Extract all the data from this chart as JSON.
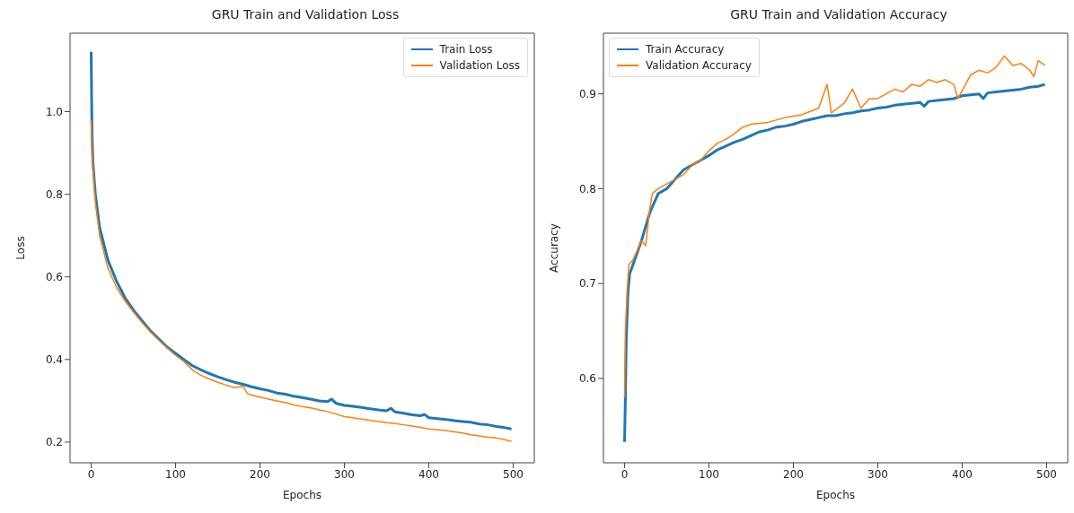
{
  "chart_data": [
    {
      "type": "line",
      "title": "GRU Train and Validation Loss",
      "xlabel": "Epochs",
      "ylabel": "Loss",
      "xlim": [
        -25,
        525
      ],
      "xticks": [
        0,
        100,
        200,
        300,
        400,
        500
      ],
      "ylim": [
        0.15,
        1.19
      ],
      "yticks": [
        0.2,
        0.4,
        0.6,
        0.8,
        {
          "value": 1.0,
          "label": "1.0"
        }
      ],
      "legend": "top right",
      "marker": "none",
      "line_style": "solid",
      "series": [
        {
          "name": "Train Loss",
          "color": "#1f77b4",
          "x": [
            0,
            1,
            2,
            5,
            10,
            20,
            30,
            40,
            50,
            60,
            70,
            80,
            90,
            100,
            110,
            120,
            130,
            140,
            150,
            160,
            170,
            180,
            190,
            200,
            210,
            220,
            230,
            240,
            250,
            260,
            270,
            280,
            285,
            290,
            300,
            310,
            320,
            330,
            340,
            350,
            355,
            360,
            370,
            380,
            390,
            395,
            400,
            410,
            420,
            430,
            440,
            450,
            460,
            470,
            480,
            490,
            498
          ],
          "values": [
            1.145,
            0.95,
            0.88,
            0.8,
            0.72,
            0.64,
            0.59,
            0.55,
            0.52,
            0.495,
            0.47,
            0.45,
            0.43,
            0.415,
            0.4,
            0.385,
            0.375,
            0.366,
            0.358,
            0.351,
            0.345,
            0.34,
            0.334,
            0.329,
            0.325,
            0.319,
            0.316,
            0.311,
            0.308,
            0.304,
            0.3,
            0.298,
            0.304,
            0.294,
            0.289,
            0.287,
            0.284,
            0.281,
            0.278,
            0.276,
            0.282,
            0.273,
            0.27,
            0.266,
            0.264,
            0.267,
            0.259,
            0.257,
            0.255,
            0.252,
            0.25,
            0.248,
            0.244,
            0.242,
            0.238,
            0.235,
            0.232
          ]
        },
        {
          "name": "Validation Loss",
          "color": "#ff7f0e",
          "x": [
            0,
            1,
            5,
            10,
            20,
            30,
            40,
            50,
            60,
            70,
            80,
            90,
            100,
            110,
            120,
            130,
            140,
            150,
            160,
            170,
            180,
            185,
            190,
            200,
            210,
            220,
            230,
            240,
            250,
            260,
            270,
            280,
            290,
            300,
            310,
            320,
            330,
            340,
            350,
            360,
            370,
            380,
            390,
            400,
            410,
            420,
            430,
            440,
            450,
            460,
            470,
            480,
            490,
            498
          ],
          "values": [
            0.98,
            0.9,
            0.78,
            0.7,
            0.62,
            0.575,
            0.542,
            0.515,
            0.49,
            0.467,
            0.447,
            0.428,
            0.41,
            0.395,
            0.375,
            0.362,
            0.353,
            0.345,
            0.338,
            0.332,
            0.335,
            0.318,
            0.314,
            0.309,
            0.304,
            0.3,
            0.296,
            0.29,
            0.286,
            0.283,
            0.278,
            0.274,
            0.268,
            0.262,
            0.259,
            0.256,
            0.253,
            0.25,
            0.247,
            0.245,
            0.242,
            0.239,
            0.236,
            0.232,
            0.23,
            0.228,
            0.225,
            0.222,
            0.218,
            0.215,
            0.212,
            0.21,
            0.206,
            0.202
          ]
        }
      ]
    },
    {
      "type": "line",
      "title": "GRU Train and Validation Accuracy",
      "xlabel": "Epochs",
      "ylabel": "Accuracy",
      "xlim": [
        -25,
        525
      ],
      "xticks": [
        0,
        100,
        200,
        300,
        400,
        500
      ],
      "ylim": [
        0.511,
        0.964
      ],
      "yticks": [
        0.6,
        0.7,
        0.8,
        0.9
      ],
      "legend": "top left",
      "marker": "none",
      "line_style": "solid",
      "series": [
        {
          "name": "Train Accuracy",
          "color": "#1f77b4",
          "x": [
            0,
            1,
            2,
            4,
            6,
            10,
            20,
            30,
            40,
            50,
            60,
            70,
            80,
            90,
            100,
            110,
            120,
            130,
            140,
            150,
            160,
            170,
            180,
            190,
            200,
            210,
            220,
            230,
            240,
            250,
            260,
            270,
            280,
            290,
            300,
            310,
            320,
            330,
            340,
            350,
            355,
            360,
            370,
            380,
            390,
            400,
            410,
            420,
            425,
            430,
            440,
            450,
            460,
            470,
            480,
            490,
            498
          ],
          "values": [
            0.533,
            0.58,
            0.64,
            0.69,
            0.71,
            0.72,
            0.745,
            0.775,
            0.795,
            0.8,
            0.81,
            0.82,
            0.825,
            0.83,
            0.835,
            0.841,
            0.845,
            0.849,
            0.852,
            0.856,
            0.86,
            0.862,
            0.865,
            0.866,
            0.868,
            0.871,
            0.873,
            0.875,
            0.877,
            0.877,
            0.879,
            0.88,
            0.882,
            0.883,
            0.885,
            0.886,
            0.888,
            0.889,
            0.89,
            0.891,
            0.887,
            0.892,
            0.893,
            0.894,
            0.895,
            0.898,
            0.899,
            0.9,
            0.895,
            0.901,
            0.902,
            0.903,
            0.904,
            0.905,
            0.907,
            0.908,
            0.91
          ]
        },
        {
          "name": "Validation Accuracy",
          "color": "#ff7f0e",
          "x": [
            0,
            1,
            3,
            5,
            10,
            15,
            20,
            25,
            30,
            33,
            40,
            50,
            60,
            70,
            80,
            90,
            100,
            110,
            120,
            130,
            140,
            150,
            170,
            190,
            210,
            230,
            240,
            245,
            260,
            270,
            280,
            290,
            300,
            310,
            320,
            330,
            340,
            350,
            360,
            370,
            380,
            390,
            395,
            410,
            420,
            430,
            440,
            450,
            460,
            470,
            480,
            485,
            490,
            498
          ],
          "values": [
            0.58,
            0.65,
            0.69,
            0.72,
            0.725,
            0.735,
            0.745,
            0.74,
            0.78,
            0.795,
            0.8,
            0.805,
            0.81,
            0.815,
            0.825,
            0.83,
            0.84,
            0.848,
            0.852,
            0.858,
            0.865,
            0.868,
            0.87,
            0.875,
            0.878,
            0.885,
            0.91,
            0.88,
            0.89,
            0.905,
            0.885,
            0.895,
            0.895,
            0.9,
            0.905,
            0.902,
            0.91,
            0.908,
            0.915,
            0.912,
            0.915,
            0.91,
            0.895,
            0.92,
            0.925,
            0.922,
            0.928,
            0.94,
            0.93,
            0.932,
            0.925,
            0.918,
            0.935,
            0.93
          ]
        }
      ]
    }
  ]
}
